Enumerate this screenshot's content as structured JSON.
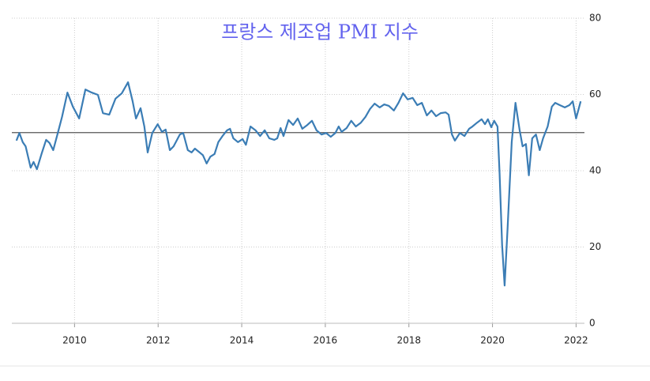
{
  "chart_data": {
    "type": "line",
    "title": "프랑스 제조업 PMI 지수",
    "x": [
      2008.61,
      2008.68,
      2008.76,
      2008.83,
      2008.95,
      2009.02,
      2009.1,
      2009.21,
      2009.32,
      2009.4,
      2009.49,
      2009.59,
      2009.7,
      2009.83,
      2009.96,
      2010.11,
      2010.26,
      2010.41,
      2010.56,
      2010.68,
      2010.83,
      2010.98,
      2011.13,
      2011.28,
      2011.39,
      2011.47,
      2011.58,
      2011.67,
      2011.75,
      2011.86,
      2011.99,
      2012.09,
      2012.18,
      2012.28,
      2012.37,
      2012.52,
      2012.6,
      2012.71,
      2012.8,
      2012.88,
      2012.97,
      2013.07,
      2013.16,
      2013.25,
      2013.35,
      2013.44,
      2013.54,
      2013.65,
      2013.72,
      2013.8,
      2013.91,
      2014.02,
      2014.1,
      2014.21,
      2014.33,
      2014.44,
      2014.55,
      2014.66,
      2014.78,
      2014.85,
      2014.93,
      2015.0,
      2015.12,
      2015.23,
      2015.34,
      2015.45,
      2015.57,
      2015.68,
      2015.79,
      2015.91,
      2016.02,
      2016.13,
      2016.24,
      2016.32,
      2016.39,
      2016.51,
      2016.62,
      2016.73,
      2016.85,
      2016.96,
      2017.07,
      2017.18,
      2017.3,
      2017.41,
      2017.52,
      2017.64,
      2017.75,
      2017.86,
      2017.97,
      2018.09,
      2018.2,
      2018.31,
      2018.43,
      2018.54,
      2018.65,
      2018.76,
      2018.88,
      2018.95,
      2019.03,
      2019.1,
      2019.22,
      2019.33,
      2019.44,
      2019.52,
      2019.63,
      2019.74,
      2019.82,
      2019.89,
      2019.97,
      2020.04,
      2020.12,
      2020.17,
      2020.23,
      2020.29,
      2020.36,
      2020.46,
      2020.55,
      2020.65,
      2020.72,
      2020.8,
      2020.87,
      2020.95,
      2021.04,
      2021.13,
      2021.21,
      2021.32,
      2021.42,
      2021.5,
      2021.61,
      2021.73,
      2021.84,
      2021.92,
      2022.0,
      2022.11
    ],
    "series": [
      {
        "name": "PMI",
        "color": "#3b7db5",
        "values": [
          47.9,
          49.9,
          47.5,
          46.4,
          40.8,
          42.3,
          40.4,
          44.4,
          48.1,
          47.3,
          45.4,
          49.5,
          54.1,
          60.5,
          56.8,
          53.7,
          61.3,
          60.5,
          59.9,
          55.1,
          54.7,
          58.9,
          60.3,
          63.2,
          58.2,
          53.7,
          56.4,
          51.6,
          44.8,
          49.9,
          52.2,
          50.2,
          50.8,
          45.4,
          46.4,
          49.5,
          49.9,
          45.4,
          44.8,
          45.8,
          45.0,
          44.1,
          41.9,
          43.7,
          44.4,
          47.5,
          49.1,
          50.6,
          51.0,
          48.5,
          47.5,
          48.3,
          46.8,
          51.6,
          50.6,
          49.1,
          50.6,
          48.5,
          48.1,
          48.5,
          51.2,
          49.1,
          53.3,
          52.0,
          53.7,
          51.0,
          52.0,
          53.1,
          50.6,
          49.5,
          49.9,
          48.9,
          49.9,
          51.6,
          50.2,
          51.2,
          53.1,
          51.6,
          52.6,
          54.1,
          56.2,
          57.6,
          56.6,
          57.4,
          57.0,
          55.8,
          57.8,
          60.3,
          58.7,
          59.1,
          57.2,
          57.8,
          54.5,
          55.8,
          54.3,
          55.1,
          55.3,
          54.7,
          49.5,
          47.9,
          49.9,
          49.1,
          51.0,
          51.6,
          52.6,
          53.5,
          52.2,
          53.5,
          51.4,
          53.1,
          51.6,
          39.2,
          20.5,
          9.9,
          24.7,
          47.5,
          57.8,
          50.6,
          46.4,
          47.0,
          38.8,
          48.5,
          49.5,
          45.4,
          48.5,
          51.6,
          56.8,
          57.8,
          57.2,
          56.6,
          57.2,
          58.2,
          53.7,
          58.2
        ]
      }
    ],
    "xlim": [
      2008.5,
      2022.2
    ],
    "xticks": [
      2010,
      2012,
      2014,
      2016,
      2018,
      2020,
      2022
    ],
    "ylim": [
      0,
      80
    ],
    "yticks": [
      0,
      20,
      40,
      60,
      80
    ],
    "reference_line": 50,
    "grid": true
  }
}
